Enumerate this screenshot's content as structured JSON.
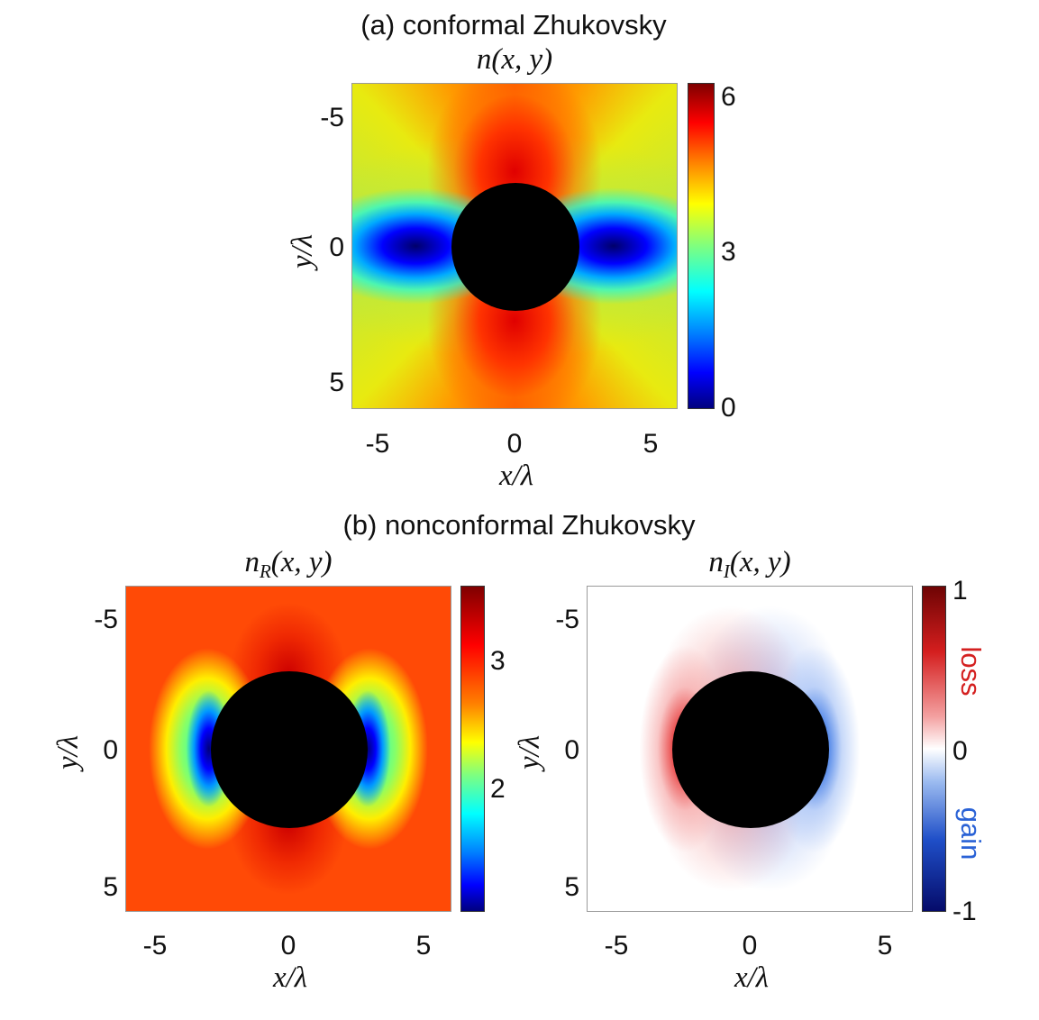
{
  "chart_data": [
    {
      "type": "heatmap",
      "id": "a",
      "panel_title": "(a) conformal Zhukovsky",
      "title": "n(x, y)",
      "title_parts": {
        "base": "n",
        "sub": "",
        "args": "(x, y)"
      },
      "xlabel": "x/λ",
      "ylabel": "y/λ",
      "xlim": [
        -6,
        6
      ],
      "ylim": [
        -6,
        6
      ],
      "xticks": [
        "-5",
        "0",
        "5"
      ],
      "yticks": [
        "-5",
        "0",
        "5"
      ],
      "colorbar": {
        "min": 0,
        "max": 6.4,
        "ticks": [
          "0",
          "3",
          "6"
        ],
        "colormap": "jet",
        "labels": []
      },
      "obstacle": {
        "shape": "circle",
        "center": [
          0,
          0
        ],
        "radius": 2.35,
        "color": "#000000"
      }
    },
    {
      "type": "heatmap",
      "id": "b-real",
      "panel_title": "(b) nonconformal Zhukovsky",
      "title": "nR(x, y)",
      "title_parts": {
        "base": "n",
        "sub": "R",
        "args": "(x, y)"
      },
      "xlabel": "x/λ",
      "ylabel": "y/λ",
      "xlim": [
        -6,
        6
      ],
      "ylim": [
        -6,
        6
      ],
      "xticks": [
        "-5",
        "0",
        "5"
      ],
      "yticks": [
        "-5",
        "0",
        "5"
      ],
      "colorbar": {
        "min": 1.2,
        "max": 3.6,
        "ticks": [
          "2",
          "3"
        ],
        "colormap": "jet",
        "labels": []
      },
      "obstacle": {
        "shape": "circle",
        "center": [
          0,
          0
        ],
        "radius": 2.9,
        "color": "#000000"
      }
    },
    {
      "type": "heatmap",
      "id": "b-imag",
      "title": "nI(x, y)",
      "title_parts": {
        "base": "n",
        "sub": "I",
        "args": "(x, y)"
      },
      "xlabel": "x/λ",
      "ylabel": "y/λ",
      "xlim": [
        -6,
        6
      ],
      "ylim": [
        -6,
        6
      ],
      "xticks": [
        "-5",
        "0",
        "5"
      ],
      "yticks": [
        "-5",
        "0",
        "5"
      ],
      "colorbar": {
        "min": -1,
        "max": 1,
        "ticks": [
          "-1",
          "0",
          "1"
        ],
        "colormap": "diverging-blue-white-red",
        "labels": [
          {
            "text": "loss",
            "value": 0.5,
            "color": "#d42020"
          },
          {
            "text": "gain",
            "value": -0.5,
            "color": "#2a62d6"
          }
        ]
      },
      "obstacle": {
        "shape": "circle",
        "center": [
          0,
          0
        ],
        "radius": 2.9,
        "color": "#000000"
      }
    }
  ]
}
